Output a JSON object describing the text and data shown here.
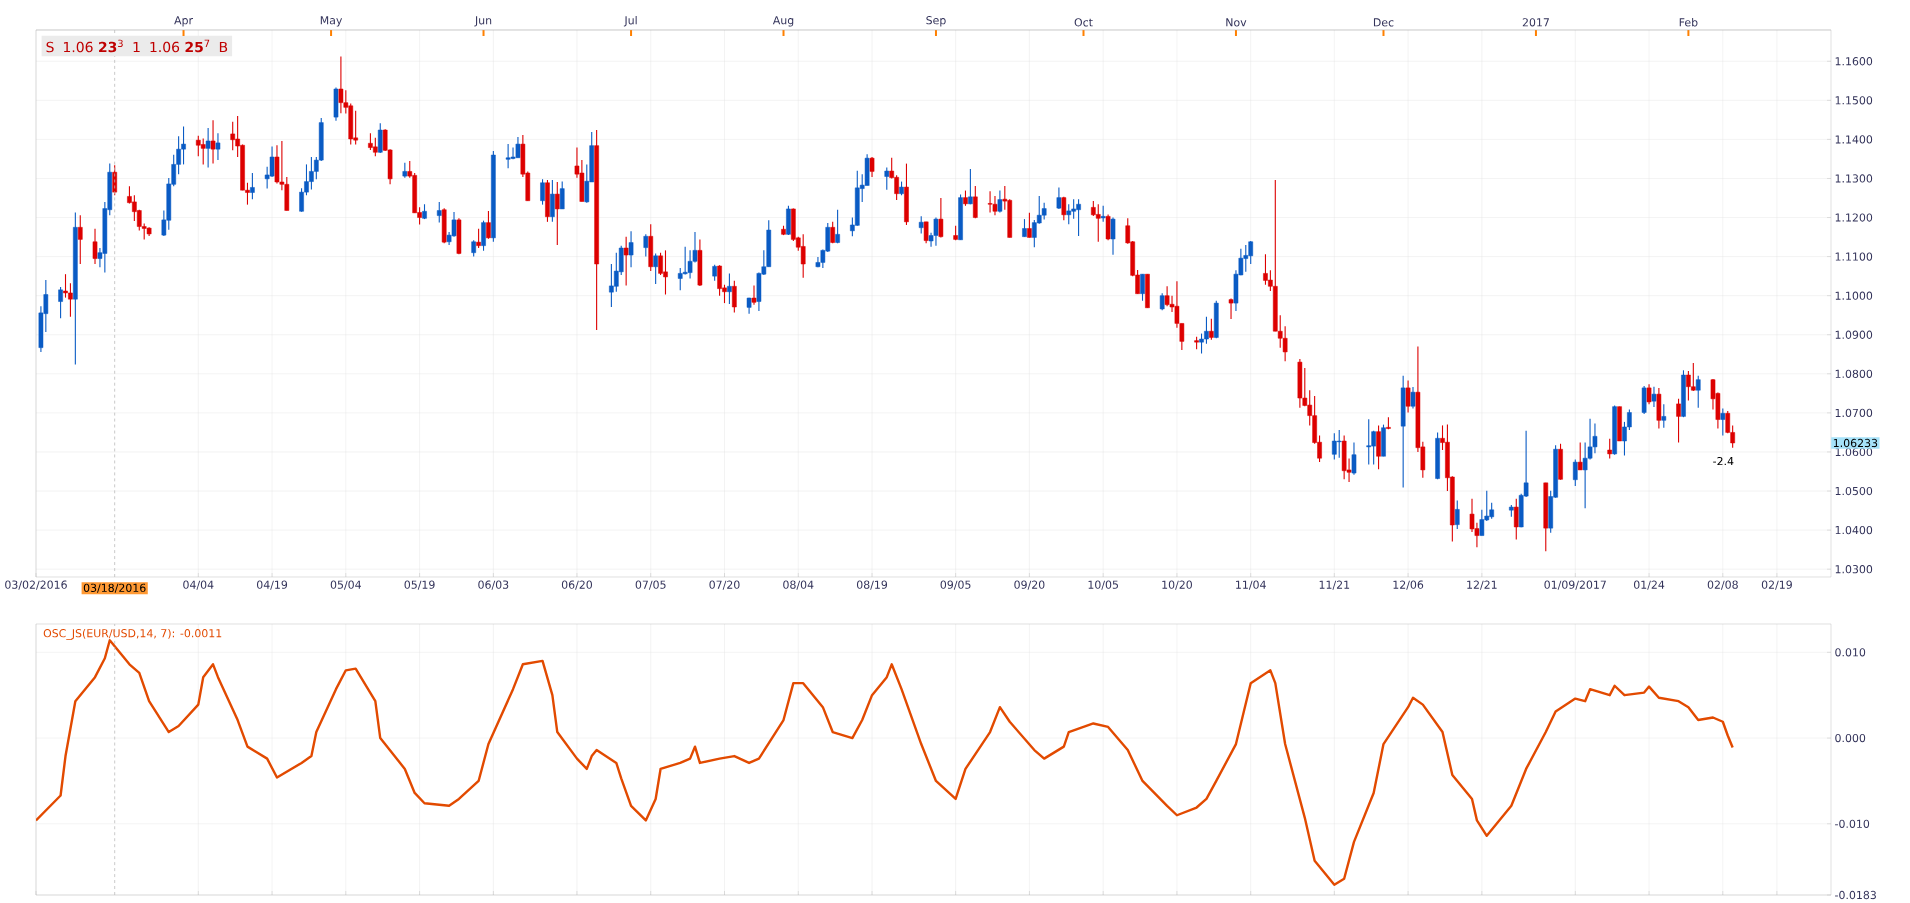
{
  "chart_data": [
    {
      "type": "candlestick",
      "x": [
        "2016-03-03",
        "2016-03-04",
        "2016-03-07",
        "2016-03-08",
        "2016-03-09",
        "2016-03-10",
        "2016-03-11",
        "2016-03-14",
        "2016-03-15",
        "2016-03-16",
        "2016-03-17",
        "2016-03-18",
        "2016-03-21",
        "2016-03-22",
        "2016-03-23",
        "2016-03-24",
        "2016-03-25",
        "2016-03-28",
        "2016-03-29",
        "2016-03-30",
        "2016-03-31",
        "2016-04-01",
        "2016-04-04",
        "2016-04-05",
        "2016-04-06",
        "2016-04-07",
        "2016-04-08",
        "2016-04-11",
        "2016-04-12",
        "2016-04-13",
        "2016-04-14",
        "2016-04-15",
        "2016-04-18",
        "2016-04-19",
        "2016-04-20",
        "2016-04-21",
        "2016-04-22",
        "2016-04-25",
        "2016-04-26",
        "2016-04-27",
        "2016-04-28",
        "2016-04-29",
        "2016-05-02",
        "2016-05-03",
        "2016-05-04",
        "2016-05-05",
        "2016-05-06",
        "2016-05-09",
        "2016-05-10",
        "2016-05-11",
        "2016-05-12",
        "2016-05-13",
        "2016-05-16",
        "2016-05-17",
        "2016-05-18",
        "2016-05-19",
        "2016-05-20",
        "2016-05-23",
        "2016-05-24",
        "2016-05-25",
        "2016-05-26",
        "2016-05-27",
        "2016-05-30",
        "2016-05-31",
        "2016-06-01",
        "2016-06-02",
        "2016-06-03",
        "2016-06-06",
        "2016-06-07",
        "2016-06-08",
        "2016-06-09",
        "2016-06-10",
        "2016-06-13",
        "2016-06-14",
        "2016-06-15",
        "2016-06-16",
        "2016-06-17",
        "2016-06-20",
        "2016-06-21",
        "2016-06-22",
        "2016-06-23",
        "2016-06-24",
        "2016-06-27",
        "2016-06-28",
        "2016-06-29",
        "2016-06-30",
        "2016-07-01",
        "2016-07-04",
        "2016-07-05",
        "2016-07-06",
        "2016-07-07",
        "2016-07-08",
        "2016-07-11",
        "2016-07-12",
        "2016-07-13",
        "2016-07-14",
        "2016-07-15",
        "2016-07-18",
        "2016-07-19",
        "2016-07-20",
        "2016-07-21",
        "2016-07-22",
        "2016-07-25",
        "2016-07-26",
        "2016-07-27",
        "2016-07-28",
        "2016-07-29",
        "2016-08-01",
        "2016-08-02",
        "2016-08-03",
        "2016-08-04",
        "2016-08-05",
        "2016-08-08",
        "2016-08-09",
        "2016-08-10",
        "2016-08-11",
        "2016-08-12",
        "2016-08-15",
        "2016-08-16",
        "2016-08-17",
        "2016-08-18",
        "2016-08-19",
        "2016-08-22",
        "2016-08-23",
        "2016-08-24",
        "2016-08-25",
        "2016-08-26",
        "2016-08-29",
        "2016-08-30",
        "2016-08-31",
        "2016-09-01",
        "2016-09-02",
        "2016-09-05",
        "2016-09-06",
        "2016-09-07",
        "2016-09-08",
        "2016-09-09",
        "2016-09-12",
        "2016-09-13",
        "2016-09-14",
        "2016-09-15",
        "2016-09-16",
        "2016-09-19",
        "2016-09-20",
        "2016-09-21",
        "2016-09-22",
        "2016-09-23",
        "2016-09-26",
        "2016-09-27",
        "2016-09-28",
        "2016-09-29",
        "2016-09-30",
        "2016-10-03",
        "2016-10-04",
        "2016-10-05",
        "2016-10-06",
        "2016-10-07",
        "2016-10-10",
        "2016-10-11",
        "2016-10-12",
        "2016-10-13",
        "2016-10-14",
        "2016-10-17",
        "2016-10-18",
        "2016-10-19",
        "2016-10-20",
        "2016-10-21",
        "2016-10-24",
        "2016-10-25",
        "2016-10-26",
        "2016-10-27",
        "2016-10-28",
        "2016-10-31",
        "2016-11-01",
        "2016-11-02",
        "2016-11-03",
        "2016-11-04",
        "2016-11-07",
        "2016-11-08",
        "2016-11-09",
        "2016-11-10",
        "2016-11-11",
        "2016-11-14",
        "2016-11-15",
        "2016-11-16",
        "2016-11-17",
        "2016-11-18",
        "2016-11-21",
        "2016-11-22",
        "2016-11-23",
        "2016-11-24",
        "2016-11-25",
        "2016-11-28",
        "2016-11-29",
        "2016-11-30",
        "2016-12-01",
        "2016-12-02",
        "2016-12-05",
        "2016-12-06",
        "2016-12-07",
        "2016-12-08",
        "2016-12-09",
        "2016-12-12",
        "2016-12-13",
        "2016-12-14",
        "2016-12-15",
        "2016-12-16",
        "2016-12-19",
        "2016-12-20",
        "2016-12-21",
        "2016-12-22",
        "2016-12-23",
        "2016-12-27",
        "2016-12-28",
        "2016-12-29",
        "2016-12-30",
        "2017-01-03",
        "2017-01-04",
        "2017-01-05",
        "2017-01-06",
        "2017-01-09",
        "2017-01-10",
        "2017-01-11",
        "2017-01-12",
        "2017-01-13",
        "2017-01-16",
        "2017-01-17",
        "2017-01-18",
        "2017-01-19",
        "2017-01-20",
        "2017-01-23",
        "2017-01-24",
        "2017-01-25",
        "2017-01-26",
        "2017-01-27",
        "2017-01-30",
        "2017-01-31",
        "2017-02-01",
        "2017-02-02",
        "2017-02-03",
        "2017-02-06",
        "2017-02-07",
        "2017-02-08",
        "2017-02-09",
        "2017-02-10"
      ],
      "ohlc": [
        [
          1.0867,
          1.0973,
          1.0856,
          1.0956
        ],
        [
          1.0954,
          1.104,
          1.0907,
          1.1003
        ],
        [
          1.0985,
          1.1022,
          1.0942,
          1.1015
        ],
        [
          1.1012,
          1.1055,
          1.0995,
          1.1007
        ],
        [
          1.1007,
          1.1032,
          1.0946,
          1.0991
        ],
        [
          1.0991,
          1.1213,
          1.0824,
          1.1175
        ],
        [
          1.1175,
          1.1206,
          1.1081,
          1.1144
        ],
        [
          1.1138,
          1.1171,
          1.1081,
          1.1095
        ],
        [
          1.1095,
          1.1122,
          1.1073,
          1.111
        ],
        [
          1.1108,
          1.124,
          1.1059,
          1.1223
        ],
        [
          1.122,
          1.1338,
          1.1206,
          1.1316
        ],
        [
          1.1316,
          1.1334,
          1.1257,
          1.1265
        ],
        [
          1.1254,
          1.128,
          1.1236,
          1.1238
        ],
        [
          1.124,
          1.1257,
          1.1191,
          1.1215
        ],
        [
          1.1218,
          1.122,
          1.1167,
          1.1177
        ],
        [
          1.1177,
          1.1185,
          1.1144,
          1.1172
        ],
        [
          1.1173,
          1.1175,
          1.1153,
          1.1158
        ],
        [
          1.1155,
          1.1218,
          1.1153,
          1.1194
        ],
        [
          1.1193,
          1.1301,
          1.1169,
          1.1286
        ],
        [
          1.1285,
          1.1361,
          1.128,
          1.1336
        ],
        [
          1.1336,
          1.1408,
          1.1311,
          1.1375
        ],
        [
          1.1375,
          1.1433,
          1.1336,
          1.1388
        ],
        [
          1.1398,
          1.1409,
          1.1357,
          1.1385
        ],
        [
          1.1387,
          1.1402,
          1.1336,
          1.1377
        ],
        [
          1.1377,
          1.1429,
          1.1328,
          1.1396
        ],
        [
          1.1396,
          1.1449,
          1.1338,
          1.1375
        ],
        [
          1.1375,
          1.1416,
          1.1347,
          1.1391
        ],
        [
          1.1414,
          1.1445,
          1.1372,
          1.1399
        ],
        [
          1.1401,
          1.146,
          1.1355,
          1.1383
        ],
        [
          1.1385,
          1.1387,
          1.127,
          1.127
        ],
        [
          1.127,
          1.1289,
          1.1233,
          1.1264
        ],
        [
          1.1264,
          1.1314,
          1.1247,
          1.1277
        ],
        [
          1.1299,
          1.133,
          1.1274,
          1.1309
        ],
        [
          1.1306,
          1.1382,
          1.1304,
          1.1355
        ],
        [
          1.1355,
          1.1385,
          1.1287,
          1.1291
        ],
        [
          1.1291,
          1.1396,
          1.127,
          1.1285
        ],
        [
          1.1285,
          1.1304,
          1.1218,
          1.1218
        ],
        [
          1.1216,
          1.1275,
          1.1215,
          1.1265
        ],
        [
          1.1265,
          1.1336,
          1.1257,
          1.1292
        ],
        [
          1.1292,
          1.1355,
          1.1272,
          1.1318
        ],
        [
          1.1318,
          1.1355,
          1.1298,
          1.1347
        ],
        [
          1.1347,
          1.1455,
          1.1345,
          1.1443
        ],
        [
          1.1457,
          1.1533,
          1.1448,
          1.1529
        ],
        [
          1.1529,
          1.1612,
          1.1467,
          1.1494
        ],
        [
          1.1494,
          1.1526,
          1.1466,
          1.1482
        ],
        [
          1.1486,
          1.1492,
          1.1387,
          1.1401
        ],
        [
          1.1404,
          1.1473,
          1.1387,
          1.1398
        ],
        [
          1.139,
          1.1416,
          1.1373,
          1.1379
        ],
        [
          1.1381,
          1.1404,
          1.1357,
          1.1367
        ],
        [
          1.1367,
          1.1441,
          1.1365,
          1.1424
        ],
        [
          1.1424,
          1.1426,
          1.137,
          1.1372
        ],
        [
          1.1373,
          1.1375,
          1.1285,
          1.1299
        ],
        [
          1.1306,
          1.134,
          1.1302,
          1.1318
        ],
        [
          1.1318,
          1.1345,
          1.1302,
          1.1306
        ],
        [
          1.1308,
          1.1314,
          1.1212,
          1.1212
        ],
        [
          1.1213,
          1.1226,
          1.1182,
          1.12
        ],
        [
          1.1198,
          1.1234,
          1.1196,
          1.1216
        ],
        [
          1.1205,
          1.124,
          1.1187,
          1.1218
        ],
        [
          1.122,
          1.1224,
          1.1134,
          1.1137
        ],
        [
          1.1138,
          1.1163,
          1.113,
          1.1155
        ],
        [
          1.1153,
          1.1214,
          1.1151,
          1.1194
        ],
        [
          1.1194,
          1.1198,
          1.1106,
          1.1108
        ],
        [
          1.111,
          1.1142,
          1.11,
          1.1138
        ],
        [
          1.1137,
          1.1171,
          1.1122,
          1.1128
        ],
        [
          1.1128,
          1.1192,
          1.1115,
          1.1187
        ],
        [
          1.1187,
          1.1217,
          1.1146,
          1.1148
        ],
        [
          1.1148,
          1.137,
          1.1138,
          1.136
        ],
        [
          1.1349,
          1.1388,
          1.1326,
          1.1353
        ],
        [
          1.1351,
          1.1379,
          1.1349,
          1.1355
        ],
        [
          1.1353,
          1.1406,
          1.1353,
          1.1388
        ],
        [
          1.1388,
          1.1411,
          1.1304,
          1.1311
        ],
        [
          1.1314,
          1.1318,
          1.1243,
          1.1243
        ],
        [
          1.1243,
          1.1298,
          1.1233,
          1.1289
        ],
        [
          1.1289,
          1.1296,
          1.1189,
          1.1202
        ],
        [
          1.1202,
          1.1296,
          1.1189,
          1.126
        ],
        [
          1.126,
          1.1291,
          1.113,
          1.1222
        ],
        [
          1.1222,
          1.1292,
          1.1222,
          1.1274
        ],
        [
          1.1332,
          1.1379,
          1.1302,
          1.1311
        ],
        [
          1.1314,
          1.1347,
          1.1241,
          1.1241
        ],
        [
          1.124,
          1.1336,
          1.1238,
          1.1293
        ],
        [
          1.1291,
          1.1419,
          1.1291,
          1.1384
        ],
        [
          1.1384,
          1.1424,
          1.0912,
          1.1081
        ],
        [
          1.1009,
          1.1081,
          1.0971,
          1.1025
        ],
        [
          1.1024,
          1.111,
          1.101,
          1.1063
        ],
        [
          1.1061,
          1.1128,
          1.1053,
          1.1122
        ],
        [
          1.1122,
          1.1151,
          1.1026,
          1.1104
        ],
        [
          1.1104,
          1.1165,
          1.1073,
          1.1136
        ],
        [
          1.1123,
          1.1157,
          1.11,
          1.1152
        ],
        [
          1.1152,
          1.1183,
          1.1063,
          1.1074
        ],
        [
          1.1074,
          1.1108,
          1.103,
          1.1102
        ],
        [
          1.1102,
          1.111,
          1.1053,
          1.1057
        ],
        [
          1.1061,
          1.1116,
          1.1003,
          1.1048
        ],
        [
          1.1044,
          1.1071,
          1.1014,
          1.1057
        ],
        [
          1.1056,
          1.1125,
          1.1054,
          1.106
        ],
        [
          1.1059,
          1.1116,
          1.1044,
          1.1088
        ],
        [
          1.1088,
          1.1163,
          1.1085,
          1.1116
        ],
        [
          1.1116,
          1.1144,
          1.1025,
          1.1027
        ],
        [
          1.105,
          1.1079,
          1.1038,
          1.1075
        ],
        [
          1.1076,
          1.1078,
          1.1,
          1.1018
        ],
        [
          1.102,
          1.1028,
          1.0981,
          1.101
        ],
        [
          1.101,
          1.1057,
          1.0979,
          1.1024
        ],
        [
          1.1024,
          1.1038,
          1.0957,
          1.0971
        ],
        [
          1.097,
          1.0995,
          1.0954,
          1.0994
        ],
        [
          1.0994,
          1.1026,
          1.0977,
          1.0983
        ],
        [
          1.0985,
          1.1059,
          1.0961,
          1.1057
        ],
        [
          1.1055,
          1.1116,
          1.1053,
          1.1074
        ],
        [
          1.1074,
          1.1193,
          1.1074,
          1.1168
        ],
        [
          1.117,
          1.1179,
          1.1155,
          1.1157
        ],
        [
          1.1157,
          1.123,
          1.1155,
          1.1222
        ],
        [
          1.1222,
          1.1223,
          1.114,
          1.1144
        ],
        [
          1.1148,
          1.1151,
          1.1115,
          1.1124
        ],
        [
          1.1126,
          1.1157,
          1.1046,
          1.1081
        ],
        [
          1.1074,
          1.1099,
          1.1073,
          1.1085
        ],
        [
          1.1085,
          1.1118,
          1.1071,
          1.1116
        ],
        [
          1.1114,
          1.1186,
          1.1112,
          1.1175
        ],
        [
          1.1175,
          1.1189,
          1.1134,
          1.1136
        ],
        [
          1.1136,
          1.122,
          1.1134,
          1.1157
        ],
        [
          1.1166,
          1.12,
          1.1152,
          1.1181
        ],
        [
          1.118,
          1.132,
          1.1179,
          1.1276
        ],
        [
          1.1274,
          1.1311,
          1.124,
          1.1283
        ],
        [
          1.1282,
          1.1362,
          1.1282,
          1.1352
        ],
        [
          1.1352,
          1.1355,
          1.1304,
          1.1318
        ],
        [
          1.1305,
          1.1328,
          1.1271,
          1.1319
        ],
        [
          1.1319,
          1.1353,
          1.13,
          1.1302
        ],
        [
          1.1303,
          1.1308,
          1.1245,
          1.1261
        ],
        [
          1.1261,
          1.1292,
          1.1257,
          1.1278
        ],
        [
          1.1278,
          1.1338,
          1.1181,
          1.1189
        ],
        [
          1.1174,
          1.1203,
          1.1159,
          1.1188
        ],
        [
          1.1189,
          1.1189,
          1.1134,
          1.1141
        ],
        [
          1.114,
          1.1161,
          1.1125,
          1.1154
        ],
        [
          1.1154,
          1.12,
          1.1128,
          1.1196
        ],
        [
          1.1196,
          1.125,
          1.1149,
          1.1151
        ],
        [
          1.1154,
          1.1179,
          1.1142,
          1.1144
        ],
        [
          1.1143,
          1.1259,
          1.1143,
          1.1251
        ],
        [
          1.1251,
          1.1269,
          1.123,
          1.1235
        ],
        [
          1.1235,
          1.1324,
          1.1234,
          1.1253
        ],
        [
          1.1253,
          1.1281,
          1.1198,
          1.12
        ],
        [
          1.1236,
          1.1267,
          1.1213,
          1.1234
        ],
        [
          1.1234,
          1.1255,
          1.1206,
          1.1216
        ],
        [
          1.1216,
          1.1269,
          1.1213,
          1.1246
        ],
        [
          1.1247,
          1.1281,
          1.122,
          1.1242
        ],
        [
          1.1244,
          1.1247,
          1.1149,
          1.1149
        ],
        [
          1.1151,
          1.1196,
          1.1151,
          1.1172
        ],
        [
          1.1172,
          1.1212,
          1.1149,
          1.1149
        ],
        [
          1.1149,
          1.1194,
          1.1124,
          1.1187
        ],
        [
          1.1186,
          1.1255,
          1.1184,
          1.1206
        ],
        [
          1.1206,
          1.1238,
          1.1195,
          1.1223
        ],
        [
          1.1224,
          1.1277,
          1.1222,
          1.1251
        ],
        [
          1.1251,
          1.1253,
          1.1193,
          1.1207
        ],
        [
          1.1207,
          1.1234,
          1.1183,
          1.1217
        ],
        [
          1.1216,
          1.1247,
          1.1197,
          1.1222
        ],
        [
          1.122,
          1.1247,
          1.1153,
          1.1234
        ],
        [
          1.1226,
          1.1242,
          1.1204,
          1.1207
        ],
        [
          1.1208,
          1.1234,
          1.1138,
          1.1198
        ],
        [
          1.1199,
          1.123,
          1.1189,
          1.1203
        ],
        [
          1.1203,
          1.1208,
          1.1142,
          1.1145
        ],
        [
          1.1145,
          1.12,
          1.1105,
          1.1196
        ],
        [
          1.1179,
          1.1198,
          1.1133,
          1.1135
        ],
        [
          1.1138,
          1.114,
          1.105,
          1.1052
        ],
        [
          1.1053,
          1.1066,
          1.1005,
          1.1005
        ],
        [
          1.1005,
          1.1055,
          1.0987,
          1.1055
        ],
        [
          1.1055,
          1.1055,
          1.0969,
          1.0969
        ],
        [
          1.0966,
          1.1006,
          1.0963,
          1.1
        ],
        [
          1.1,
          1.1024,
          1.0973,
          1.0977
        ],
        [
          1.0978,
          1.1,
          1.0958,
          1.0971
        ],
        [
          1.0973,
          1.1037,
          1.0918,
          1.0929
        ],
        [
          1.0929,
          1.0929,
          1.0861,
          1.0883
        ],
        [
          1.0885,
          1.0895,
          1.0863,
          1.0881
        ],
        [
          1.0881,
          1.0903,
          1.0852,
          1.0889
        ],
        [
          1.0889,
          1.0946,
          1.0877,
          1.0909
        ],
        [
          1.0909,
          1.0941,
          1.0887,
          1.0893
        ],
        [
          1.0893,
          1.0987,
          1.0891,
          1.0981
        ],
        [
          1.099,
          1.0993,
          1.094,
          1.0981
        ],
        [
          1.0981,
          1.1065,
          1.0961,
          1.1055
        ],
        [
          1.1053,
          1.112,
          1.1052,
          1.1096
        ],
        [
          1.1095,
          1.113,
          1.1061,
          1.1103
        ],
        [
          1.1102,
          1.114,
          1.1081,
          1.1138
        ],
        [
          1.1057,
          1.1106,
          1.1028,
          1.1039
        ],
        [
          1.104,
          1.1065,
          1.1012,
          1.1024
        ],
        [
          1.1024,
          1.1296,
          1.0909,
          1.0909
        ],
        [
          1.0909,
          1.095,
          1.0867,
          1.0891
        ],
        [
          1.0891,
          1.0922,
          1.0832,
          1.0856
        ],
        [
          1.083,
          1.0838,
          1.0713,
          1.0738
        ],
        [
          1.0738,
          1.0815,
          1.0717,
          1.0719
        ],
        [
          1.072,
          1.0758,
          1.0668,
          1.0693
        ],
        [
          1.0693,
          1.0743,
          1.0621,
          1.0624
        ],
        [
          1.0625,
          1.0642,
          1.0574,
          1.0584
        ],
        [
          1.0594,
          1.0648,
          1.0581,
          1.0628
        ],
        [
          1.0626,
          1.0656,
          1.0585,
          1.0628
        ],
        [
          1.0628,
          1.0642,
          1.053,
          1.0552
        ],
        [
          1.0554,
          1.0583,
          1.0523,
          1.0548
        ],
        [
          1.0546,
          1.0624,
          1.0542,
          1.0593
        ],
        [
          1.0613,
          1.0684,
          1.0568,
          1.0616
        ],
        [
          1.0615,
          1.0654,
          1.0568,
          1.0652
        ],
        [
          1.0652,
          1.0668,
          1.0556,
          1.0589
        ],
        [
          1.0589,
          1.067,
          1.0589,
          1.0662
        ],
        [
          1.0663,
          1.0689,
          1.0658,
          1.066
        ],
        [
          1.0666,
          1.0795,
          1.0509,
          1.0764
        ],
        [
          1.0764,
          1.0783,
          1.0701,
          1.0717
        ],
        [
          1.0717,
          1.0766,
          1.0711,
          1.0753
        ],
        [
          1.0753,
          1.087,
          1.06,
          1.0611
        ],
        [
          1.0613,
          1.0626,
          1.0534,
          1.0554
        ],
        [
          1.0532,
          1.065,
          1.053,
          1.0635
        ],
        [
          1.0635,
          1.0668,
          1.0605,
          1.0624
        ],
        [
          1.0625,
          1.067,
          1.05,
          1.0534
        ],
        [
          1.0536,
          1.0538,
          1.0371,
          1.0413
        ],
        [
          1.0414,
          1.0476,
          1.0403,
          1.0453
        ],
        [
          1.0441,
          1.048,
          1.0395,
          1.0403
        ],
        [
          1.0404,
          1.0419,
          1.0356,
          1.0386
        ],
        [
          1.0386,
          1.0452,
          1.0386,
          1.0427
        ],
        [
          1.0426,
          1.0501,
          1.0423,
          1.0436
        ],
        [
          1.0434,
          1.047,
          1.0429,
          1.0452
        ],
        [
          1.0451,
          1.0464,
          1.0434,
          1.0459
        ],
        [
          1.0459,
          1.048,
          1.0376,
          1.0408
        ],
        [
          1.0408,
          1.0493,
          1.0407,
          1.0489
        ],
        [
          1.0487,
          1.0654,
          1.0485,
          1.0521
        ],
        [
          1.0521,
          1.0521,
          1.0346,
          1.0405
        ],
        [
          1.0405,
          1.0501,
          1.0393,
          1.0486
        ],
        [
          1.0484,
          1.0617,
          1.0483,
          1.0607
        ],
        [
          1.0607,
          1.0621,
          1.0529,
          1.053
        ],
        [
          1.0529,
          1.0581,
          1.0513,
          1.0574
        ],
        [
          1.0574,
          1.0624,
          1.0554,
          1.0554
        ],
        [
          1.0554,
          1.0624,
          1.0456,
          1.0584
        ],
        [
          1.0584,
          1.0685,
          1.0581,
          1.0613
        ],
        [
          1.0613,
          1.0673,
          1.0597,
          1.064
        ],
        [
          1.0605,
          1.0634,
          1.0583,
          1.0595
        ],
        [
          1.0595,
          1.0719,
          1.0593,
          1.0716
        ],
        [
          1.0716,
          1.0716,
          1.0628,
          1.0628
        ],
        [
          1.0628,
          1.0677,
          1.0591,
          1.0664
        ],
        [
          1.0664,
          1.0709,
          1.0656,
          1.0701
        ],
        [
          1.0701,
          1.0769,
          1.0697,
          1.0764
        ],
        [
          1.0764,
          1.0773,
          1.0722,
          1.0728
        ],
        [
          1.073,
          1.0767,
          1.0715,
          1.0748
        ],
        [
          1.0748,
          1.0764,
          1.066,
          1.0681
        ],
        [
          1.0681,
          1.0722,
          1.0662,
          1.0691
        ],
        [
          1.0723,
          1.0736,
          1.0624,
          1.0691
        ],
        [
          1.0691,
          1.0809,
          1.0689,
          1.0797
        ],
        [
          1.0797,
          1.0807,
          1.0732,
          1.0767
        ],
        [
          1.0767,
          1.0828,
          1.0756,
          1.0758
        ],
        [
          1.0758,
          1.0795,
          1.0713,
          1.0785
        ],
        [
          1.0785,
          1.0787,
          1.0709,
          1.0736
        ],
        [
          1.075,
          1.0752,
          1.066,
          1.0683
        ],
        [
          1.0683,
          1.0711,
          1.0642,
          1.0699
        ],
        [
          1.0699,
          1.0705,
          1.0648,
          1.065
        ],
        [
          1.065,
          1.0668,
          1.0611,
          1.0623
        ]
      ],
      "xlim": [
        "2016-03-02",
        "2017-03-02"
      ],
      "xticks": [
        {
          "value": "2016-03-02",
          "label": "03/02/2016"
        },
        {
          "value": "2016-04-04",
          "label": "04/04"
        },
        {
          "value": "2016-04-19",
          "label": "04/19"
        },
        {
          "value": "2016-05-04",
          "label": "05/04"
        },
        {
          "value": "2016-05-19",
          "label": "05/19"
        },
        {
          "value": "2016-06-03",
          "label": "06/03"
        },
        {
          "value": "2016-06-20",
          "label": "06/20"
        },
        {
          "value": "2016-07-05",
          "label": "07/05"
        },
        {
          "value": "2016-07-20",
          "label": "07/20"
        },
        {
          "value": "2016-08-04",
          "label": "08/04"
        },
        {
          "value": "2016-08-19",
          "label": "08/19"
        },
        {
          "value": "2016-09-05",
          "label": "09/05"
        },
        {
          "value": "2016-09-20",
          "label": "09/20"
        },
        {
          "value": "2016-10-05",
          "label": "10/05"
        },
        {
          "value": "2016-10-20",
          "label": "10/20"
        },
        {
          "value": "2016-11-04",
          "label": "11/04"
        },
        {
          "value": "2016-11-21",
          "label": "11/21"
        },
        {
          "value": "2016-12-06",
          "label": "12/06"
        },
        {
          "value": "2016-12-21",
          "label": "12/21"
        },
        {
          "value": "2017-01-09",
          "label": "01/09/2017"
        },
        {
          "value": "2017-01-24",
          "label": "01/24"
        },
        {
          "value": "2017-02-08",
          "label": "02/08"
        },
        {
          "value": "2017-02-19",
          "label": "02/19"
        }
      ],
      "x2lim": [
        "2016-03-02",
        "2017-03-02"
      ],
      "x2ticks": [
        {
          "value": "2016-04-01",
          "label": "Apr"
        },
        {
          "value": "2016-05-01",
          "label": "May"
        },
        {
          "value": "2016-06-01",
          "label": "Jun"
        },
        {
          "value": "2016-07-01",
          "label": "Jul"
        },
        {
          "value": "2016-08-01",
          "label": "Aug"
        },
        {
          "value": "2016-09-01",
          "label": "Sep"
        },
        {
          "value": "2016-10-01",
          "label": "Oct"
        },
        {
          "value": "2016-11-01",
          "label": "Nov"
        },
        {
          "value": "2016-12-01",
          "label": "Dec"
        },
        {
          "value": "2017-01-01",
          "label": "2017"
        },
        {
          "value": "2017-02-01",
          "label": "Feb"
        }
      ],
      "ylim": [
        1.028,
        1.168
      ],
      "yticks": [
        {
          "value": 1.03,
          "label": "1.0300"
        },
        {
          "value": 1.04,
          "label": "1.0400"
        },
        {
          "value": 1.05,
          "label": "1.0500"
        },
        {
          "value": 1.06,
          "label": "1.0600"
        },
        {
          "value": 1.07,
          "label": "1.0700"
        },
        {
          "value": 1.08,
          "label": "1.0800"
        },
        {
          "value": 1.09,
          "label": "1.0900"
        },
        {
          "value": 1.1,
          "label": "1.1000"
        },
        {
          "value": 1.11,
          "label": "1.1100"
        },
        {
          "value": 1.12,
          "label": "1.1200"
        },
        {
          "value": 1.13,
          "label": "1.1300"
        },
        {
          "value": 1.14,
          "label": "1.1400"
        },
        {
          "value": 1.15,
          "label": "1.1500"
        },
        {
          "value": 1.16,
          "label": "1.1600"
        }
      ],
      "grid": true,
      "ref_lines": [
        {
          "axis": "x",
          "value": "2016-03-18",
          "label": "03/18/2016",
          "color": "#bbbbbb",
          "line_style": "dashed"
        }
      ],
      "annotations": [
        "S",
        "1.06 **23**$^{3}$",
        "1",
        "1.06 **25**$^{7}$",
        "B",
        "-2.4",
        "1.06233"
      ]
    },
    {
      "type": "line",
      "title": "OSC_JS(EUR/USD,14, 7): -0.0011",
      "color": "#e24a00",
      "x": [
        "2016-03-02",
        "2016-03-07",
        "2016-03-08",
        "2016-03-10",
        "2016-03-14",
        "2016-03-16",
        "2016-03-17",
        "2016-03-21",
        "2016-03-23",
        "2016-03-25",
        "2016-03-29",
        "2016-03-31",
        "2016-04-04",
        "2016-04-05",
        "2016-04-07",
        "2016-04-08",
        "2016-04-12",
        "2016-04-14",
        "2016-04-18",
        "2016-04-20",
        "2016-04-25",
        "2016-04-27",
        "2016-04-28",
        "2016-05-02",
        "2016-05-04",
        "2016-05-06",
        "2016-05-10",
        "2016-05-11",
        "2016-05-16",
        "2016-05-18",
        "2016-05-20",
        "2016-05-25",
        "2016-05-27",
        "2016-05-31",
        "2016-06-02",
        "2016-06-07",
        "2016-06-09",
        "2016-06-13",
        "2016-06-15",
        "2016-06-16",
        "2016-06-20",
        "2016-06-22",
        "2016-06-23",
        "2016-06-24",
        "2016-06-28",
        "2016-06-29",
        "2016-07-01",
        "2016-07-04",
        "2016-07-06",
        "2016-07-07",
        "2016-07-11",
        "2016-07-13",
        "2016-07-14",
        "2016-07-15",
        "2016-07-19",
        "2016-07-22",
        "2016-07-25",
        "2016-07-27",
        "2016-08-01",
        "2016-08-03",
        "2016-08-05",
        "2016-08-09",
        "2016-08-11",
        "2016-08-15",
        "2016-08-17",
        "2016-08-19",
        "2016-08-22",
        "2016-08-23",
        "2016-08-25",
        "2016-08-29",
        "2016-09-01",
        "2016-09-05",
        "2016-09-07",
        "2016-09-12",
        "2016-09-14",
        "2016-09-16",
        "2016-09-21",
        "2016-09-23",
        "2016-09-27",
        "2016-09-28",
        "2016-10-03",
        "2016-10-06",
        "2016-10-10",
        "2016-10-13",
        "2016-10-18",
        "2016-10-20",
        "2016-10-24",
        "2016-10-26",
        "2016-10-28",
        "2016-11-01",
        "2016-11-04",
        "2016-11-08",
        "2016-11-09",
        "2016-11-11",
        "2016-11-15",
        "2016-11-17",
        "2016-11-21",
        "2016-11-23",
        "2016-11-25",
        "2016-11-29",
        "2016-12-01",
        "2016-12-06",
        "2016-12-07",
        "2016-12-09",
        "2016-12-13",
        "2016-12-15",
        "2016-12-19",
        "2016-12-20",
        "2016-12-22",
        "2016-12-27",
        "2016-12-30",
        "2017-01-03",
        "2017-01-05",
        "2017-01-09",
        "2017-01-11",
        "2017-01-12",
        "2017-01-16",
        "2017-01-17",
        "2017-01-19",
        "2017-01-23",
        "2017-01-24",
        "2017-01-26",
        "2017-01-30",
        "2017-02-01",
        "2017-02-03",
        "2017-02-06",
        "2017-02-08",
        "2017-02-09",
        "2017-02-10"
      ],
      "values": [
        -0.0096,
        -0.0067,
        -0.0021,
        0.0043,
        0.0071,
        0.0093,
        0.0114,
        0.0086,
        0.0076,
        0.0043,
        0.0007,
        0.0014,
        0.0039,
        0.0071,
        0.0086,
        0.0071,
        0.0021,
        -0.001,
        -0.0024,
        -0.0046,
        -0.0029,
        -0.0021,
        0.0007,
        0.0057,
        0.0079,
        0.0081,
        0.0043,
        0.0,
        -0.0036,
        -0.0064,
        -0.0076,
        -0.0079,
        -0.0071,
        -0.005,
        -0.0007,
        0.0057,
        0.0086,
        0.009,
        0.005,
        0.0007,
        -0.0024,
        -0.0036,
        -0.0021,
        -0.0014,
        -0.0029,
        -0.0047,
        -0.0079,
        -0.0096,
        -0.0071,
        -0.0036,
        -0.0029,
        -0.0024,
        -0.001,
        -0.0029,
        -0.0024,
        -0.0021,
        -0.0029,
        -0.0024,
        0.0021,
        0.0064,
        0.0064,
        0.0036,
        0.0007,
        0.0,
        0.0021,
        0.005,
        0.0071,
        0.0086,
        0.0057,
        -0.0007,
        -0.005,
        -0.0071,
        -0.0036,
        0.0007,
        0.0036,
        0.0019,
        -0.0014,
        -0.0024,
        -0.001,
        0.0007,
        0.0017,
        0.0013,
        -0.0014,
        -0.005,
        -0.0079,
        -0.009,
        -0.0081,
        -0.0071,
        -0.005,
        -0.0007,
        0.0064,
        0.0079,
        0.0064,
        -0.0007,
        -0.0093,
        -0.0143,
        -0.0171,
        -0.0164,
        -0.0121,
        -0.0064,
        -0.0007,
        0.0036,
        0.0047,
        0.0039,
        0.0007,
        -0.0043,
        -0.0071,
        -0.0096,
        -0.0114,
        -0.0079,
        -0.0036,
        0.0007,
        0.0031,
        0.0046,
        0.0043,
        0.0057,
        0.005,
        0.0061,
        0.005,
        0.0053,
        0.006,
        0.0047,
        0.0043,
        0.0036,
        0.0021,
        0.0024,
        0.0019,
        0.0003,
        -0.0011
      ],
      "xlim": [
        "2016-03-02",
        "2017-03-02"
      ],
      "xticks": [
        {
          "value": "2016-03-02",
          "label": null
        },
        {
          "value": "2016-04-04",
          "label": null
        },
        {
          "value": "2016-04-19",
          "label": null
        },
        {
          "value": "2016-05-04",
          "label": null
        },
        {
          "value": "2016-05-19",
          "label": null
        },
        {
          "value": "2016-06-03",
          "label": null
        },
        {
          "value": "2016-06-20",
          "label": null
        },
        {
          "value": "2016-07-05",
          "label": null
        },
        {
          "value": "2016-07-20",
          "label": null
        },
        {
          "value": "2016-08-04",
          "label": null
        },
        {
          "value": "2016-08-19",
          "label": null
        },
        {
          "value": "2016-09-05",
          "label": null
        },
        {
          "value": "2016-09-20",
          "label": null
        },
        {
          "value": "2016-10-05",
          "label": null
        },
        {
          "value": "2016-10-20",
          "label": null
        },
        {
          "value": "2016-11-04",
          "label": null
        },
        {
          "value": "2016-11-21",
          "label": null
        },
        {
          "value": "2016-12-06",
          "label": null
        },
        {
          "value": "2016-12-21",
          "label": null
        },
        {
          "value": "2017-01-09",
          "label": null
        },
        {
          "value": "2017-01-24",
          "label": null
        },
        {
          "value": "2017-02-08",
          "label": null
        },
        {
          "value": "2017-02-19",
          "label": null
        }
      ],
      "ylim": [
        -0.0183,
        0.0133
      ],
      "yticks": [
        {
          "value": -0.0183,
          "label": "-0.0183"
        },
        {
          "value": -0.01,
          "label": "-0.010"
        },
        {
          "value": 0,
          "label": "0.000"
        },
        {
          "value": 0.01,
          "label": "0.010"
        }
      ],
      "grid": true,
      "tick_labels": "y",
      "ref_lines": [
        {
          "axis": "x",
          "value": "2016-03-18",
          "color": "#bbbbbb",
          "line_style": "dashed"
        }
      ]
    }
  ]
}
